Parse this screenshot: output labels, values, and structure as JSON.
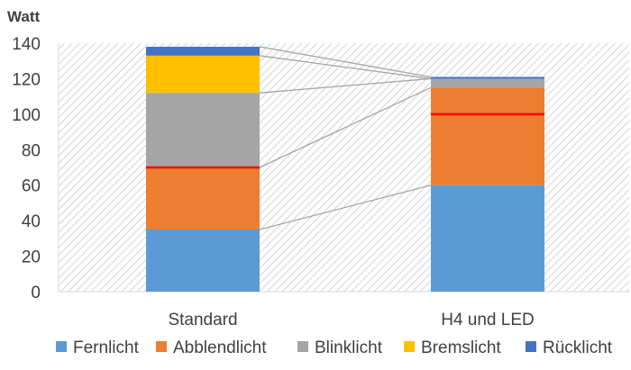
{
  "chart_data": {
    "type": "bar",
    "stacked": true,
    "unit_label": "Watt",
    "categories": [
      "Standard",
      "H4 und LED"
    ],
    "series": [
      {
        "name": "Fernlicht",
        "color": "#5B9BD5",
        "values": [
          35,
          60
        ]
      },
      {
        "name": "Abblendlicht",
        "color": "#ED7D31",
        "values": [
          35,
          55
        ]
      },
      {
        "name": "Blinklicht",
        "color": "#A5A5A5",
        "values": [
          42,
          5
        ]
      },
      {
        "name": "Bremslicht",
        "color": "#FFC000",
        "values": [
          21,
          0
        ]
      },
      {
        "name": "Rücklicht",
        "color": "#4472C4",
        "values": [
          5,
          1
        ]
      }
    ],
    "marker_lines": {
      "color": "#FF0000",
      "values": [
        70,
        100
      ]
    },
    "connector_color": "#A5A5A5",
    "ylim": [
      0,
      140
    ],
    "yticks": [
      "0",
      "20",
      "40",
      "60",
      "80",
      "100",
      "120",
      "140"
    ],
    "plot_background": "hatched light gray",
    "grid": false,
    "legend_position": "bottom"
  }
}
